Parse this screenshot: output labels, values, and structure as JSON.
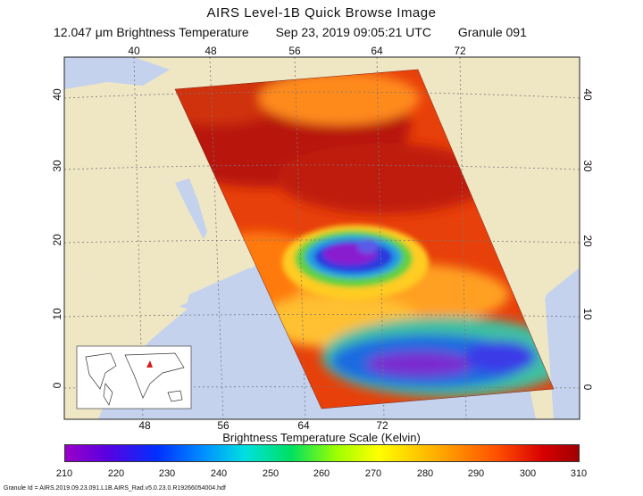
{
  "title": "AIRS Level-1B Quick Browse Image",
  "subtitle": {
    "channel": "12.047 μm Brightness Temperature",
    "timestamp": "Sep 23, 2019 09:05:21 UTC",
    "granule": "Granule 091"
  },
  "axes": {
    "top_lon": [
      "40",
      "48",
      "56",
      "64",
      "72"
    ],
    "bottom_lon": [
      "48",
      "56",
      "64",
      "72"
    ],
    "left_lat": [
      "40",
      "30",
      "20",
      "10",
      "0"
    ],
    "right_lat": [
      "40",
      "30",
      "20",
      "10",
      "0"
    ]
  },
  "colorbar": {
    "title": "Brightness Temperature Scale (Kelvin)",
    "ticks": [
      "210",
      "220",
      "230",
      "240",
      "250",
      "260",
      "270",
      "280",
      "290",
      "300",
      "310"
    ],
    "min_color": "#9a00c8",
    "max_color": "#a00000"
  },
  "footer": "Granule Id = AIRS.2019.09.23.091.L1B.AIRS_Rad.v5.0.23.0.R19266054004.hdf",
  "colors": {
    "land": "#efe6c4",
    "ocean": "#c4d2ee",
    "swath_hot": "#c81a0a",
    "storm_cold": "#6a1ad0"
  }
}
